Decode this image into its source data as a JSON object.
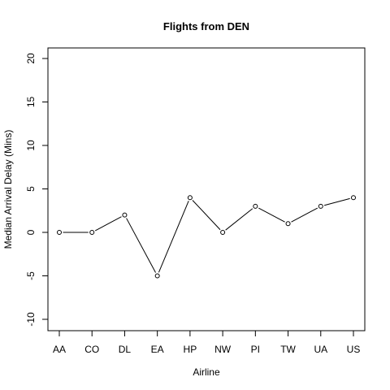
{
  "chart_data": {
    "type": "line",
    "title": "Flights from DEN",
    "xlabel": "Airline",
    "ylabel": "Median Arrival Delay (Mins)",
    "categories": [
      "AA",
      "CO",
      "DL",
      "EA",
      "HP",
      "NW",
      "PI",
      "TW",
      "UA",
      "US"
    ],
    "values": [
      0,
      0,
      2,
      -5,
      4,
      0,
      3,
      1,
      3,
      4
    ],
    "ylim": [
      -10,
      20
    ],
    "yticks": [
      -10,
      -5,
      0,
      5,
      10,
      15,
      20
    ],
    "grid": false,
    "markers": "open-circle",
    "colors": {
      "line": "#000000",
      "marker": "#000000",
      "background": "#ffffff"
    }
  }
}
